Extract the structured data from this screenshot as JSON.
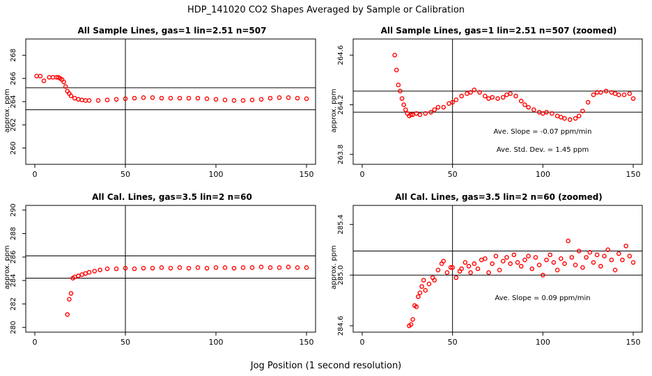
{
  "figure": {
    "title": "HDP_141020  CO2 Shapes Averaged by Sample or Calibration",
    "xlabel": "Jog Position (1 second resolution)"
  },
  "colors": {
    "points": "#ff0000",
    "axes": "#000000",
    "background": "#ffffff"
  },
  "chart_data": [
    {
      "type": "scatter",
      "title": "All Sample Lines, gas=1 lin=2.51 n=507",
      "xlabel": "",
      "ylabel": "approx. ppm",
      "xlim": [
        -5,
        155
      ],
      "ylim": [
        258.6,
        269.4
      ],
      "x_ticks": [
        0,
        50,
        100,
        150
      ],
      "y_ticks": [
        260,
        262,
        264,
        266,
        268
      ],
      "ref_vline": 50,
      "ref_hlines": [
        263.3,
        265.2
      ],
      "annotations": [],
      "series": [
        {
          "x": [
            1,
            3,
            5,
            8,
            10,
            12,
            13,
            14,
            15,
            16,
            17,
            18,
            19,
            20,
            22,
            24,
            26,
            28,
            30,
            35,
            40,
            45,
            50,
            55,
            60,
            65,
            70,
            75,
            80,
            85,
            90,
            95,
            100,
            105,
            110,
            115,
            120,
            125,
            130,
            135,
            140,
            145,
            150
          ],
          "y": [
            266.2,
            266.2,
            265.8,
            266.1,
            266.1,
            266.1,
            266.1,
            266.0,
            265.9,
            265.7,
            265.3,
            264.9,
            264.7,
            264.5,
            264.3,
            264.2,
            264.15,
            264.1,
            264.1,
            264.1,
            264.15,
            264.2,
            264.25,
            264.3,
            264.35,
            264.35,
            264.3,
            264.3,
            264.3,
            264.3,
            264.3,
            264.25,
            264.2,
            264.15,
            264.1,
            264.1,
            264.15,
            264.2,
            264.3,
            264.35,
            264.35,
            264.3,
            264.25
          ]
        }
      ]
    },
    {
      "type": "scatter",
      "title": "All Sample Lines, gas=1 lin=2.51 n=507 (zoomed)",
      "xlabel": "",
      "ylabel": "approx. ppm",
      "xlim": [
        -5,
        155
      ],
      "ylim": [
        263.72,
        264.73
      ],
      "x_ticks": [
        0,
        50,
        100,
        150
      ],
      "y_ticks": [
        263.8,
        264.2,
        264.6
      ],
      "y_tick_labels": [
        "263.8",
        "264.2",
        "264.6"
      ],
      "ref_vline": 50,
      "ref_hlines": [
        264.14,
        264.31
      ],
      "annotations": [
        "Ave. Slope =  -0.07  ppm/min",
        "Ave. Std. Dev. =  1.45  ppm"
      ],
      "series": [
        {
          "x": [
            18,
            19,
            20,
            21,
            22,
            23,
            24,
            25,
            26,
            27,
            28,
            30,
            32,
            35,
            38,
            40,
            42,
            45,
            48,
            50,
            52,
            55,
            58,
            60,
            62,
            65,
            68,
            70,
            72,
            75,
            78,
            80,
            82,
            85,
            88,
            90,
            92,
            95,
            98,
            100,
            102,
            105,
            108,
            110,
            112,
            115,
            118,
            120,
            122,
            125,
            128,
            130,
            132,
            135,
            138,
            140,
            142,
            145,
            148,
            150
          ],
          "y": [
            264.6,
            264.48,
            264.36,
            264.31,
            264.25,
            264.2,
            264.16,
            264.13,
            264.11,
            264.12,
            264.12,
            264.13,
            264.12,
            264.13,
            264.14,
            264.16,
            264.18,
            264.18,
            264.21,
            264.22,
            264.24,
            264.27,
            264.29,
            264.3,
            264.32,
            264.3,
            264.27,
            264.25,
            264.26,
            264.25,
            264.26,
            264.28,
            264.29,
            264.27,
            264.23,
            264.2,
            264.18,
            264.16,
            264.14,
            264.13,
            264.14,
            264.13,
            264.11,
            264.1,
            264.09,
            264.08,
            264.09,
            264.11,
            264.15,
            264.22,
            264.28,
            264.3,
            264.3,
            264.31,
            264.3,
            264.29,
            264.28,
            264.28,
            264.29,
            264.25
          ]
        }
      ]
    },
    {
      "type": "scatter",
      "title": "All Cal. Lines, gas=3.5 lin=2 n=60",
      "xlabel": "",
      "ylabel": "approx. ppm",
      "xlim": [
        -5,
        155
      ],
      "ylim": [
        279.6,
        290.4
      ],
      "x_ticks": [
        0,
        50,
        100,
        150
      ],
      "y_ticks": [
        280,
        282,
        284,
        286,
        288,
        290
      ],
      "ref_vline": 50,
      "ref_hlines": [
        284.2,
        286.1
      ],
      "annotations": [],
      "series": [
        {
          "x": [
            18,
            19,
            20,
            21,
            22,
            24,
            26,
            28,
            30,
            33,
            36,
            40,
            45,
            50,
            55,
            60,
            65,
            70,
            75,
            80,
            85,
            90,
            95,
            100,
            105,
            110,
            115,
            120,
            125,
            130,
            135,
            140,
            145,
            150
          ],
          "y": [
            281.1,
            282.4,
            282.9,
            284.2,
            284.3,
            284.4,
            284.5,
            284.6,
            284.7,
            284.8,
            284.9,
            285.0,
            285.0,
            285.05,
            285.0,
            285.05,
            285.05,
            285.1,
            285.05,
            285.1,
            285.05,
            285.1,
            285.05,
            285.1,
            285.1,
            285.05,
            285.1,
            285.1,
            285.15,
            285.1,
            285.1,
            285.15,
            285.1,
            285.1
          ]
        }
      ]
    },
    {
      "type": "scatter",
      "title": "All Cal. Lines, gas=3.5 lin=2 n=60 (zoomed)",
      "xlabel": "",
      "ylabel": "approx. ppm",
      "xlim": [
        -5,
        155
      ],
      "ylim": [
        284.55,
        285.55
      ],
      "x_ticks": [
        0,
        50,
        100,
        150
      ],
      "y_ticks": [
        284.6,
        285.0,
        285.4
      ],
      "y_tick_labels": [
        "284.6",
        "285.0",
        "285.4"
      ],
      "ref_vline": 50,
      "ref_hlines": [
        285.0,
        285.19
      ],
      "annotations": [
        "Ave. Slope =  0.09  ppm/min"
      ],
      "series": [
        {
          "x": [
            26,
            27,
            28,
            29,
            30,
            31,
            32,
            33,
            34,
            35,
            37,
            39,
            40,
            42,
            44,
            45,
            47,
            49,
            50,
            52,
            54,
            55,
            57,
            59,
            60,
            62,
            64,
            66,
            68,
            70,
            72,
            74,
            76,
            78,
            80,
            82,
            84,
            86,
            88,
            90,
            92,
            94,
            96,
            98,
            100,
            102,
            104,
            106,
            108,
            110,
            112,
            114,
            116,
            118,
            120,
            122,
            124,
            126,
            128,
            130,
            132,
            134,
            136,
            138,
            140,
            142,
            144,
            146,
            148,
            150
          ],
          "y": [
            284.6,
            284.61,
            284.65,
            284.76,
            284.75,
            284.83,
            284.86,
            284.91,
            284.96,
            284.88,
            284.93,
            284.98,
            284.96,
            285.04,
            285.09,
            285.11,
            285.02,
            285.06,
            285.06,
            284.98,
            285.03,
            285.05,
            285.1,
            285.07,
            285.02,
            285.09,
            285.05,
            285.12,
            285.13,
            285.02,
            285.09,
            285.15,
            285.04,
            285.11,
            285.14,
            285.09,
            285.16,
            285.1,
            285.07,
            285.12,
            285.15,
            285.05,
            285.14,
            285.08,
            285.0,
            285.12,
            285.16,
            285.1,
            285.04,
            285.13,
            285.09,
            285.27,
            285.14,
            285.08,
            285.19,
            285.06,
            285.14,
            285.18,
            285.1,
            285.16,
            285.07,
            285.15,
            285.2,
            285.12,
            285.04,
            285.17,
            285.12,
            285.23,
            285.15,
            285.1
          ]
        }
      ]
    }
  ]
}
